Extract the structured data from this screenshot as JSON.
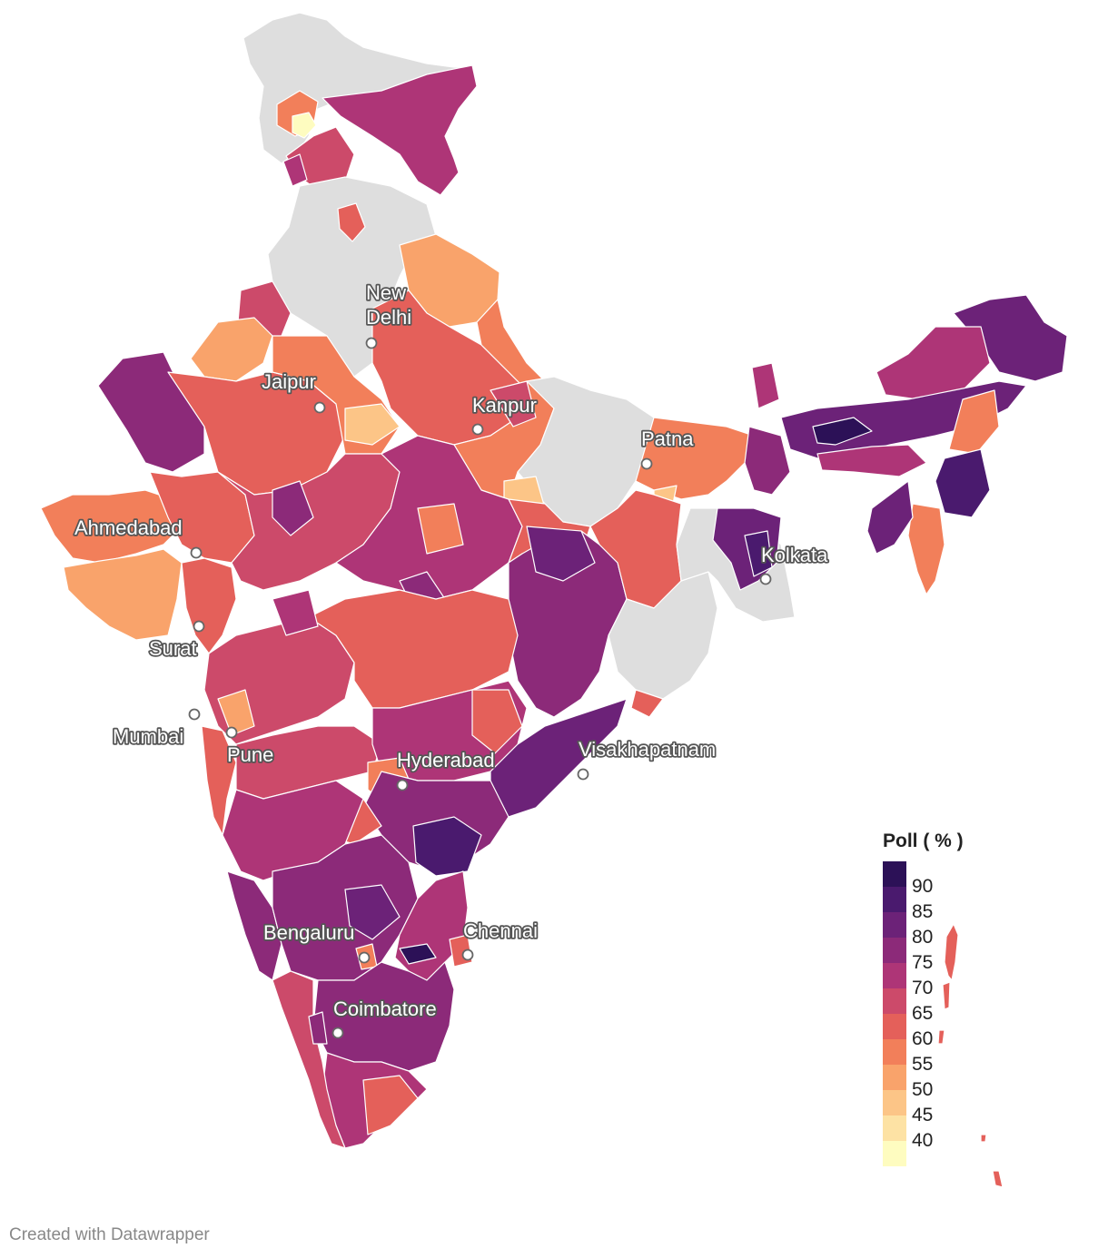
{
  "legend": {
    "title": "Poll ( % )",
    "ticks": [
      "90",
      "85",
      "80",
      "75",
      "70",
      "65",
      "60",
      "55",
      "50",
      "45",
      "40"
    ],
    "colors": [
      "#2c1157",
      "#4a1a6e",
      "#6c2278",
      "#8c2a79",
      "#ae3577",
      "#cc4a6a",
      "#e4605a",
      "#f27f5a",
      "#f9a36b",
      "#fcc587",
      "#fde2a4",
      "#fefcc0"
    ]
  },
  "cities": [
    {
      "name": "New\nDelhi",
      "label": "New Delhi"
    },
    {
      "name": "Jaipur",
      "label": "Jaipur"
    },
    {
      "name": "Kanpur",
      "label": "Kanpur"
    },
    {
      "name": "Patna",
      "label": "Patna"
    },
    {
      "name": "Ahmedabad",
      "label": "Ahmedabad"
    },
    {
      "name": "Kolkata",
      "label": "Kolkata"
    },
    {
      "name": "Surat",
      "label": "Surat"
    },
    {
      "name": "Mumbai",
      "label": "Mumbai"
    },
    {
      "name": "Pune",
      "label": "Pune"
    },
    {
      "name": "Hyderabad",
      "label": "Hyderabad"
    },
    {
      "name": "Visakhapatnam",
      "label": "Visakhapatnam"
    },
    {
      "name": "Bengaluru",
      "label": "Bengaluru"
    },
    {
      "name": "Chennai",
      "label": "Chennai"
    },
    {
      "name": "Coimbatore",
      "label": "Coimbatore"
    }
  ],
  "no_data_color": "#dedede",
  "credit": "Created with Datawrapper"
}
